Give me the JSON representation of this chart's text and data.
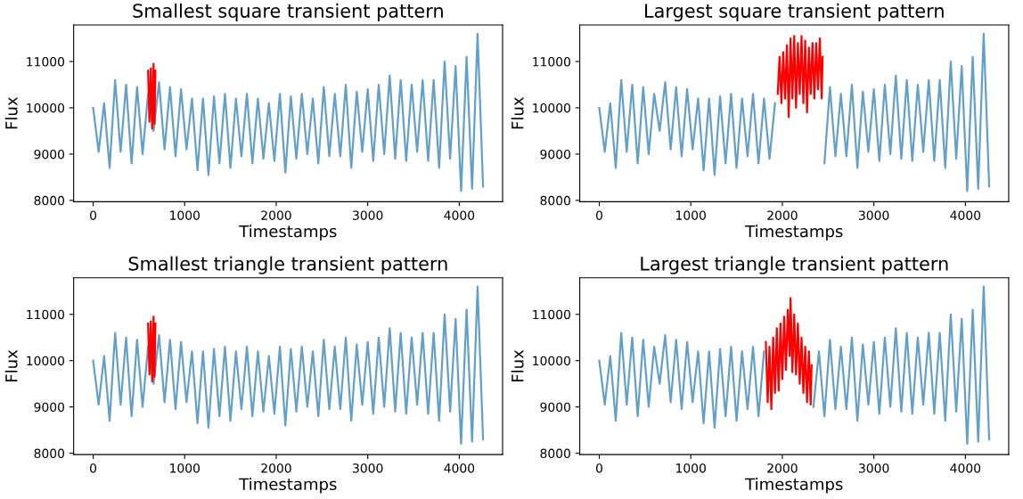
{
  "chart_data": [
    {
      "type": "line",
      "title": "Smallest square transient pattern",
      "xlabel": "Timestamps",
      "ylabel": "Flux",
      "xlim": [
        -213,
        4473
      ],
      "ylim": [
        7970,
        11790
      ],
      "xticks": [
        0,
        1000,
        2000,
        3000,
        4000
      ],
      "yticks": [
        8000,
        9000,
        10000,
        11000
      ],
      "x": [
        0,
        60,
        120,
        180,
        240,
        300,
        360,
        420,
        480,
        540,
        600,
        660,
        720,
        780,
        840,
        900,
        960,
        1020,
        1080,
        1140,
        1200,
        1260,
        1320,
        1380,
        1440,
        1500,
        1560,
        1620,
        1680,
        1740,
        1800,
        1860,
        1920,
        1980,
        2040,
        2100,
        2160,
        2220,
        2280,
        2340,
        2400,
        2460,
        2520,
        2580,
        2640,
        2700,
        2760,
        2820,
        2880,
        2940,
        3000,
        3060,
        3120,
        3180,
        3240,
        3300,
        3360,
        3420,
        3480,
        3540,
        3600,
        3660,
        3720,
        3780,
        3840,
        3900,
        3960,
        4020,
        4080,
        4140,
        4200,
        4260
      ],
      "series": [
        {
          "color": "#62a0ca",
          "values": [
            10000,
            9050,
            10100,
            8700,
            10600,
            9050,
            10500,
            8800,
            10450,
            9000,
            10300,
            9500,
            10550,
            9100,
            10450,
            8950,
            10400,
            9100,
            10200,
            8650,
            10200,
            8550,
            10250,
            8800,
            10300,
            8700,
            10200,
            8950,
            10300,
            8800,
            10200,
            8900,
            10100,
            8850,
            10300,
            8600,
            10250,
            8900,
            10300,
            9000,
            10200,
            8800,
            10450,
            8950,
            10300,
            8950,
            10500,
            8700,
            10350,
            9050,
            10400,
            8850,
            10500,
            9000,
            10700,
            8900,
            10600,
            8850,
            10500,
            9050,
            10600,
            8850,
            10600,
            8700,
            11000,
            8900,
            10900,
            8200,
            11100,
            8250,
            11600,
            8300
          ]
        },
        {
          "color": "#ff0000",
          "x": [
            600,
            615,
            630,
            645,
            660,
            670,
            680
          ],
          "values": [
            10800,
            9700,
            10850,
            9550,
            10950,
            9650,
            10800
          ]
        }
      ]
    },
    {
      "type": "line",
      "title": "Largest square transient pattern",
      "xlabel": "Timestamps",
      "ylabel": "Flux",
      "xlim": [
        -213,
        4473
      ],
      "ylim": [
        7970,
        11790
      ],
      "xticks": [
        0,
        1000,
        2000,
        3000,
        4000
      ],
      "yticks": [
        8000,
        9000,
        10000,
        11000
      ],
      "x": [
        0,
        60,
        120,
        180,
        240,
        300,
        360,
        420,
        480,
        540,
        600,
        660,
        720,
        780,
        840,
        900,
        960,
        1020,
        1080,
        1140,
        1200,
        1260,
        1320,
        1380,
        1440,
        1500,
        1560,
        1620,
        1680,
        1740,
        1800,
        1860,
        1920,
        1980,
        2040,
        2100,
        2160,
        2220,
        2280,
        2340,
        2400,
        2460,
        2520,
        2580,
        2640,
        2700,
        2760,
        2820,
        2880,
        2940,
        3000,
        3060,
        3120,
        3180,
        3240,
        3300,
        3360,
        3420,
        3480,
        3540,
        3600,
        3660,
        3720,
        3780,
        3840,
        3900,
        3960,
        4020,
        4080,
        4140,
        4200,
        4260
      ],
      "series": [
        {
          "color": "#62a0ca",
          "values": [
            10000,
            9050,
            10100,
            8700,
            10600,
            9050,
            10500,
            8800,
            10450,
            9000,
            10300,
            9500,
            10550,
            9100,
            10450,
            8950,
            10400,
            9100,
            10200,
            8650,
            10200,
            8550,
            10250,
            8800,
            10300,
            8700,
            10200,
            8950,
            10300,
            8800,
            10200,
            8900,
            10100,
            null,
            null,
            null,
            null,
            null,
            null,
            null,
            null,
            8800,
            10450,
            8950,
            10300,
            8950,
            10500,
            8700,
            10350,
            9050,
            10400,
            8850,
            10500,
            9000,
            10700,
            8900,
            10600,
            8850,
            10500,
            9050,
            10600,
            8850,
            10600,
            8700,
            11000,
            8900,
            10900,
            8200,
            11100,
            8250,
            11600,
            8300
          ]
        },
        {
          "color": "#ff0000",
          "x": [
            1950,
            1970,
            1990,
            2010,
            2030,
            2050,
            2070,
            2090,
            2110,
            2130,
            2150,
            2170,
            2190,
            2210,
            2230,
            2250,
            2270,
            2290,
            2310,
            2330,
            2350,
            2370,
            2390,
            2410,
            2430,
            2440
          ],
          "values": [
            10300,
            11100,
            10100,
            11200,
            10200,
            11350,
            9800,
            11500,
            10200,
            11550,
            10000,
            11400,
            10300,
            11550,
            10100,
            11450,
            9900,
            11300,
            10300,
            11400,
            10200,
            11400,
            10400,
            11500,
            10200,
            11100
          ]
        }
      ]
    },
    {
      "type": "line",
      "title": "Smallest triangle transient pattern",
      "xlabel": "Timestamps",
      "ylabel": "Flux",
      "xlim": [
        -213,
        4473
      ],
      "ylim": [
        7970,
        11790
      ],
      "xticks": [
        0,
        1000,
        2000,
        3000,
        4000
      ],
      "yticks": [
        8000,
        9000,
        10000,
        11000
      ],
      "x": [
        0,
        60,
        120,
        180,
        240,
        300,
        360,
        420,
        480,
        540,
        600,
        660,
        720,
        780,
        840,
        900,
        960,
        1020,
        1080,
        1140,
        1200,
        1260,
        1320,
        1380,
        1440,
        1500,
        1560,
        1620,
        1680,
        1740,
        1800,
        1860,
        1920,
        1980,
        2040,
        2100,
        2160,
        2220,
        2280,
        2340,
        2400,
        2460,
        2520,
        2580,
        2640,
        2700,
        2760,
        2820,
        2880,
        2940,
        3000,
        3060,
        3120,
        3180,
        3240,
        3300,
        3360,
        3420,
        3480,
        3540,
        3600,
        3660,
        3720,
        3780,
        3840,
        3900,
        3960,
        4020,
        4080,
        4140,
        4200,
        4260
      ],
      "series": [
        {
          "color": "#62a0ca",
          "values": [
            10000,
            9050,
            10100,
            8700,
            10600,
            9050,
            10500,
            8800,
            10450,
            9000,
            10300,
            9500,
            10550,
            9100,
            10450,
            8950,
            10400,
            9100,
            10200,
            8650,
            10200,
            8550,
            10250,
            8800,
            10300,
            8700,
            10200,
            8950,
            10300,
            8800,
            10200,
            8900,
            10100,
            8850,
            10300,
            8600,
            10250,
            8900,
            10300,
            9000,
            10200,
            8800,
            10450,
            8950,
            10300,
            8950,
            10500,
            8700,
            10350,
            9050,
            10400,
            8850,
            10500,
            9000,
            10700,
            8900,
            10600,
            8850,
            10500,
            9050,
            10600,
            8850,
            10600,
            8700,
            11000,
            8900,
            10900,
            8200,
            11100,
            8250,
            11600,
            8300
          ]
        },
        {
          "color": "#ff0000",
          "x": [
            600,
            615,
            630,
            645,
            660,
            670,
            680
          ],
          "values": [
            10800,
            9700,
            10850,
            9550,
            10950,
            9650,
            10800
          ]
        }
      ]
    },
    {
      "type": "line",
      "title": "Largest triangle transient pattern",
      "xlabel": "Timestamps",
      "ylabel": "Flux",
      "xlim": [
        -213,
        4473
      ],
      "ylim": [
        7970,
        11790
      ],
      "xticks": [
        0,
        1000,
        2000,
        3000,
        4000
      ],
      "yticks": [
        8000,
        9000,
        10000,
        11000
      ],
      "x": [
        0,
        60,
        120,
        180,
        240,
        300,
        360,
        420,
        480,
        540,
        600,
        660,
        720,
        780,
        840,
        900,
        960,
        1020,
        1080,
        1140,
        1200,
        1260,
        1320,
        1380,
        1440,
        1500,
        1560,
        1620,
        1680,
        1740,
        1800,
        1860,
        1920,
        1980,
        2040,
        2100,
        2160,
        2220,
        2280,
        2340,
        2400,
        2460,
        2520,
        2580,
        2640,
        2700,
        2760,
        2820,
        2880,
        2940,
        3000,
        3060,
        3120,
        3180,
        3240,
        3300,
        3360,
        3420,
        3480,
        3540,
        3600,
        3660,
        3720,
        3780,
        3840,
        3900,
        3960,
        4020,
        4080,
        4140,
        4200,
        4260
      ],
      "series": [
        {
          "color": "#62a0ca",
          "values": [
            10000,
            9050,
            10100,
            8700,
            10600,
            9050,
            10500,
            8800,
            10450,
            9000,
            10300,
            9500,
            10550,
            9100,
            10450,
            8950,
            10400,
            9100,
            10200,
            8650,
            10200,
            8550,
            10250,
            8800,
            10300,
            8700,
            10200,
            8950,
            10300,
            8800,
            10200,
            null,
            null,
            null,
            null,
            null,
            null,
            null,
            null,
            9000,
            10200,
            8800,
            10450,
            8950,
            10300,
            8950,
            10500,
            8700,
            10350,
            9050,
            10400,
            8850,
            10500,
            9000,
            10700,
            8900,
            10600,
            8850,
            10500,
            9050,
            10600,
            8850,
            10600,
            8700,
            11000,
            8900,
            10900,
            8200,
            11100,
            8250,
            11600,
            8300
          ]
        },
        {
          "color": "#ff0000",
          "x": [
            1820,
            1840,
            1860,
            1880,
            1900,
            1920,
            1940,
            1960,
            1980,
            2000,
            2020,
            2040,
            2060,
            2080,
            2090,
            2110,
            2130,
            2150,
            2170,
            2190,
            2210,
            2230,
            2250,
            2270,
            2290,
            2310,
            2320
          ],
          "values": [
            10400,
            9100,
            10300,
            8950,
            10500,
            9300,
            10700,
            9350,
            10800,
            9600,
            10950,
            9800,
            11100,
            10100,
            11350,
            9750,
            11000,
            9700,
            10800,
            9500,
            10500,
            9300,
            10300,
            9100,
            10200,
            9050,
            9900
          ]
        }
      ]
    }
  ]
}
